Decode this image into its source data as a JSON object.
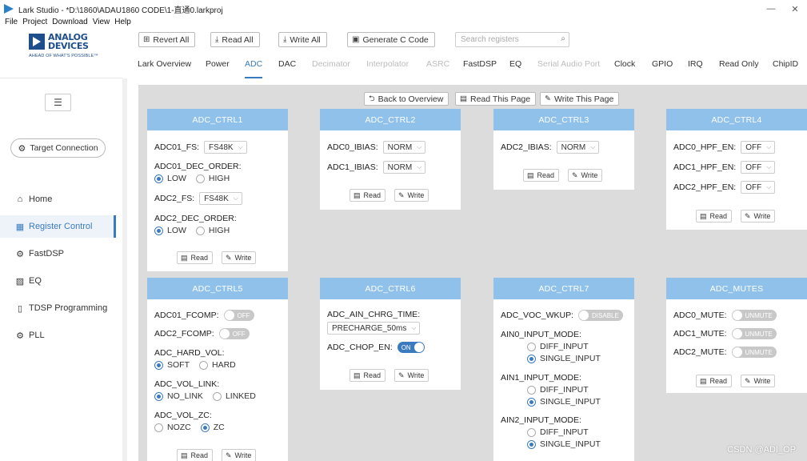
{
  "window": {
    "title": "Lark Studio - *D:\\1860\\ADAU1860 CODE\\1-直通0.larkproj",
    "minimize": "—",
    "close": "✕"
  },
  "menu": [
    "File",
    "Project",
    "Download",
    "View",
    "Help"
  ],
  "logo": {
    "line1": "ANALOG",
    "line2": "DEVICES",
    "tagline": "AHEAD OF WHAT'S POSSIBLE™"
  },
  "toolbar": {
    "revert_all": "Revert All",
    "read_all": "Read All",
    "write_all": "Write All",
    "generate_c": "Generate C Code",
    "search_placeholder": "Search registers"
  },
  "sidebar": {
    "target_connection": "Target Connection",
    "items": [
      {
        "label": "Home",
        "icon": "home-icon",
        "glyph": "⌂",
        "active": false
      },
      {
        "label": "Register Control",
        "icon": "register-icon",
        "glyph": "▦",
        "active": true
      },
      {
        "label": "FastDSP",
        "icon": "fastdsp-icon",
        "glyph": "⚙",
        "active": false
      },
      {
        "label": "EQ",
        "icon": "eq-icon",
        "glyph": "▨",
        "active": false
      },
      {
        "label": "TDSP Programming",
        "icon": "tdsp-icon",
        "glyph": "▯",
        "active": false
      },
      {
        "label": "PLL",
        "icon": "pll-icon",
        "glyph": "⚙",
        "active": false
      }
    ]
  },
  "tabs": [
    {
      "label": "Lark Overview",
      "state": "normal"
    },
    {
      "label": "Power",
      "state": "normal"
    },
    {
      "label": "ADC",
      "state": "active"
    },
    {
      "label": "DAC",
      "state": "normal"
    },
    {
      "label": "Decimator",
      "state": "disabled"
    },
    {
      "label": "Interpolator",
      "state": "disabled"
    },
    {
      "label": "ASRC",
      "state": "disabled"
    },
    {
      "label": "FastDSP",
      "state": "normal"
    },
    {
      "label": "EQ",
      "state": "normal"
    },
    {
      "label": "Serial Audio Port",
      "state": "disabled"
    },
    {
      "label": "Clock",
      "state": "normal"
    },
    {
      "label": "GPIO",
      "state": "normal"
    },
    {
      "label": "IRQ",
      "state": "normal"
    },
    {
      "label": "Read Only",
      "state": "normal"
    },
    {
      "label": "ChipID",
      "state": "normal"
    }
  ],
  "page_actions": {
    "back": "Back to Overview",
    "read_page": "Read This Page",
    "write_page": "Write This Page"
  },
  "card_buttons": {
    "read": "Read",
    "write": "Write"
  },
  "cards": {
    "adc_ctrl1": {
      "title": "ADC_CTRL1",
      "adc01_fs": {
        "label": "ADC01_FS:",
        "value": "FS48K"
      },
      "adc01_dec_order": {
        "label": "ADC01_DEC_ORDER:",
        "opt1": "LOW",
        "opt2": "HIGH"
      },
      "adc2_fs": {
        "label": "ADC2_FS:",
        "value": "FS48K"
      },
      "adc2_dec_order": {
        "label": "ADC2_DEC_ORDER:",
        "opt1": "LOW",
        "opt2": "HIGH"
      }
    },
    "adc_ctrl2": {
      "title": "ADC_CTRL2",
      "adc0_ibias": {
        "label": "ADC0_IBIAS:",
        "value": "NORM"
      },
      "adc1_ibias": {
        "label": "ADC1_IBIAS:",
        "value": "NORM"
      }
    },
    "adc_ctrl3": {
      "title": "ADC_CTRL3",
      "adc2_ibias": {
        "label": "ADC2_IBIAS:",
        "value": "NORM"
      }
    },
    "adc_ctrl4": {
      "title": "ADC_CTRL4",
      "adc0_hpf": {
        "label": "ADC0_HPF_EN:",
        "value": "OFF"
      },
      "adc1_hpf": {
        "label": "ADC1_HPF_EN:",
        "value": "OFF"
      },
      "adc2_hpf": {
        "label": "ADC2_HPF_EN:",
        "value": "OFF"
      }
    },
    "adc_ctrl5": {
      "title": "ADC_CTRL5",
      "adc01_fcomp": {
        "label": "ADC01_FCOMP:",
        "value": "OFF"
      },
      "adc2_fcomp": {
        "label": "ADC2_FCOMP:",
        "value": "OFF"
      },
      "adc_hard_vol": {
        "label": "ADC_HARD_VOL:",
        "opt1": "SOFT",
        "opt2": "HARD"
      },
      "adc_vol_link": {
        "label": "ADC_VOL_LINK:",
        "opt1": "NO_LINK",
        "opt2": "LINKED"
      },
      "adc_vol_zc": {
        "label": "ADC_VOL_ZC:",
        "opt1": "NOZC",
        "opt2": "ZC"
      }
    },
    "adc_ctrl6": {
      "title": "ADC_CTRL6",
      "adc_ain_chrg_time": {
        "label": "ADC_AIN_CHRG_TIME:",
        "value": "PRECHARGE_50ms"
      },
      "adc_chop_en": {
        "label": "ADC_CHOP_EN:",
        "value": "ON"
      }
    },
    "adc_ctrl7": {
      "title": "ADC_CTRL7",
      "adc_voc_wkup": {
        "label": "ADC_VOC_WKUP:",
        "value": "DISABLE"
      },
      "ain0": {
        "label": "AIN0_INPUT_MODE:",
        "opt1": "DIFF_INPUT",
        "opt2": "SINGLE_INPUT"
      },
      "ain1": {
        "label": "AIN1_INPUT_MODE:",
        "opt1": "DIFF_INPUT",
        "opt2": "SINGLE_INPUT"
      },
      "ain2": {
        "label": "AIN2_INPUT_MODE:",
        "opt1": "DIFF_INPUT",
        "opt2": "SINGLE_INPUT"
      }
    },
    "adc_mutes": {
      "title": "ADC_MUTES",
      "adc0_mute": {
        "label": "ADC0_MUTE:",
        "value": "UNMUTE"
      },
      "adc1_mute": {
        "label": "ADC1_MUTE:",
        "value": "UNMUTE"
      },
      "adc2_mute": {
        "label": "ADC2_MUTE:",
        "value": "UNMUTE"
      }
    }
  },
  "watermark": "CSDN @ADI_OP",
  "colors": {
    "accent": "#3a7bbf",
    "card_header": "#8fc1ea",
    "workspace": "#dcdcdc",
    "brand": "#1f4e8c"
  }
}
